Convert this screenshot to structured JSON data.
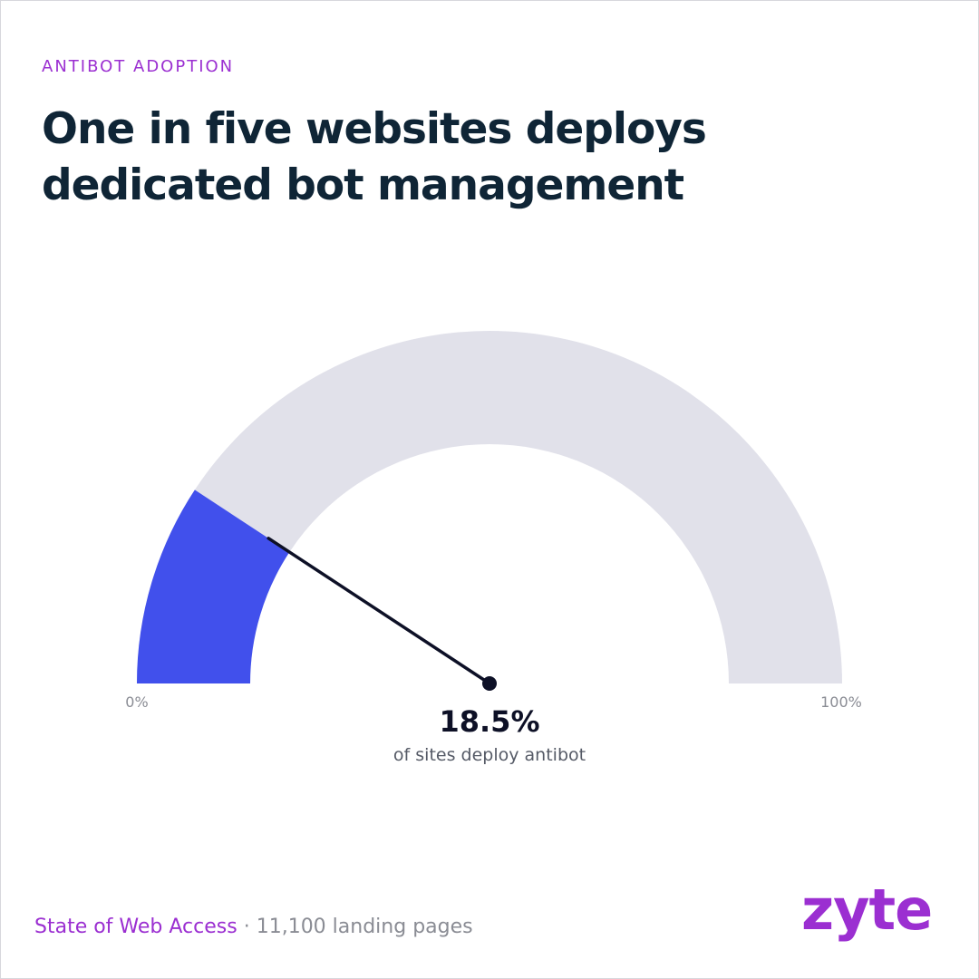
{
  "header": {
    "eyebrow": "ANTIBOT ADOPTION",
    "headline": "One in five websites deploys dedicated bot management"
  },
  "chart_data": {
    "type": "gauge",
    "value": 18.5,
    "min": 0,
    "max": 100,
    "min_label": "0%",
    "max_label": "100%",
    "value_label": "18.5%",
    "caption": "of sites deploy antibot"
  },
  "footer": {
    "source": "State of Web Access",
    "separator": "·",
    "sample": "11,100 landing pages"
  },
  "logo": {
    "text": "zyte"
  },
  "colors": {
    "accent": "#9b2fd1",
    "dark": "#0f2536",
    "fill": "#4150ec",
    "track": "#e1e1ea",
    "needle": "#0d1026",
    "muted_text": "#8a8c94",
    "caption_text": "#555a66"
  }
}
